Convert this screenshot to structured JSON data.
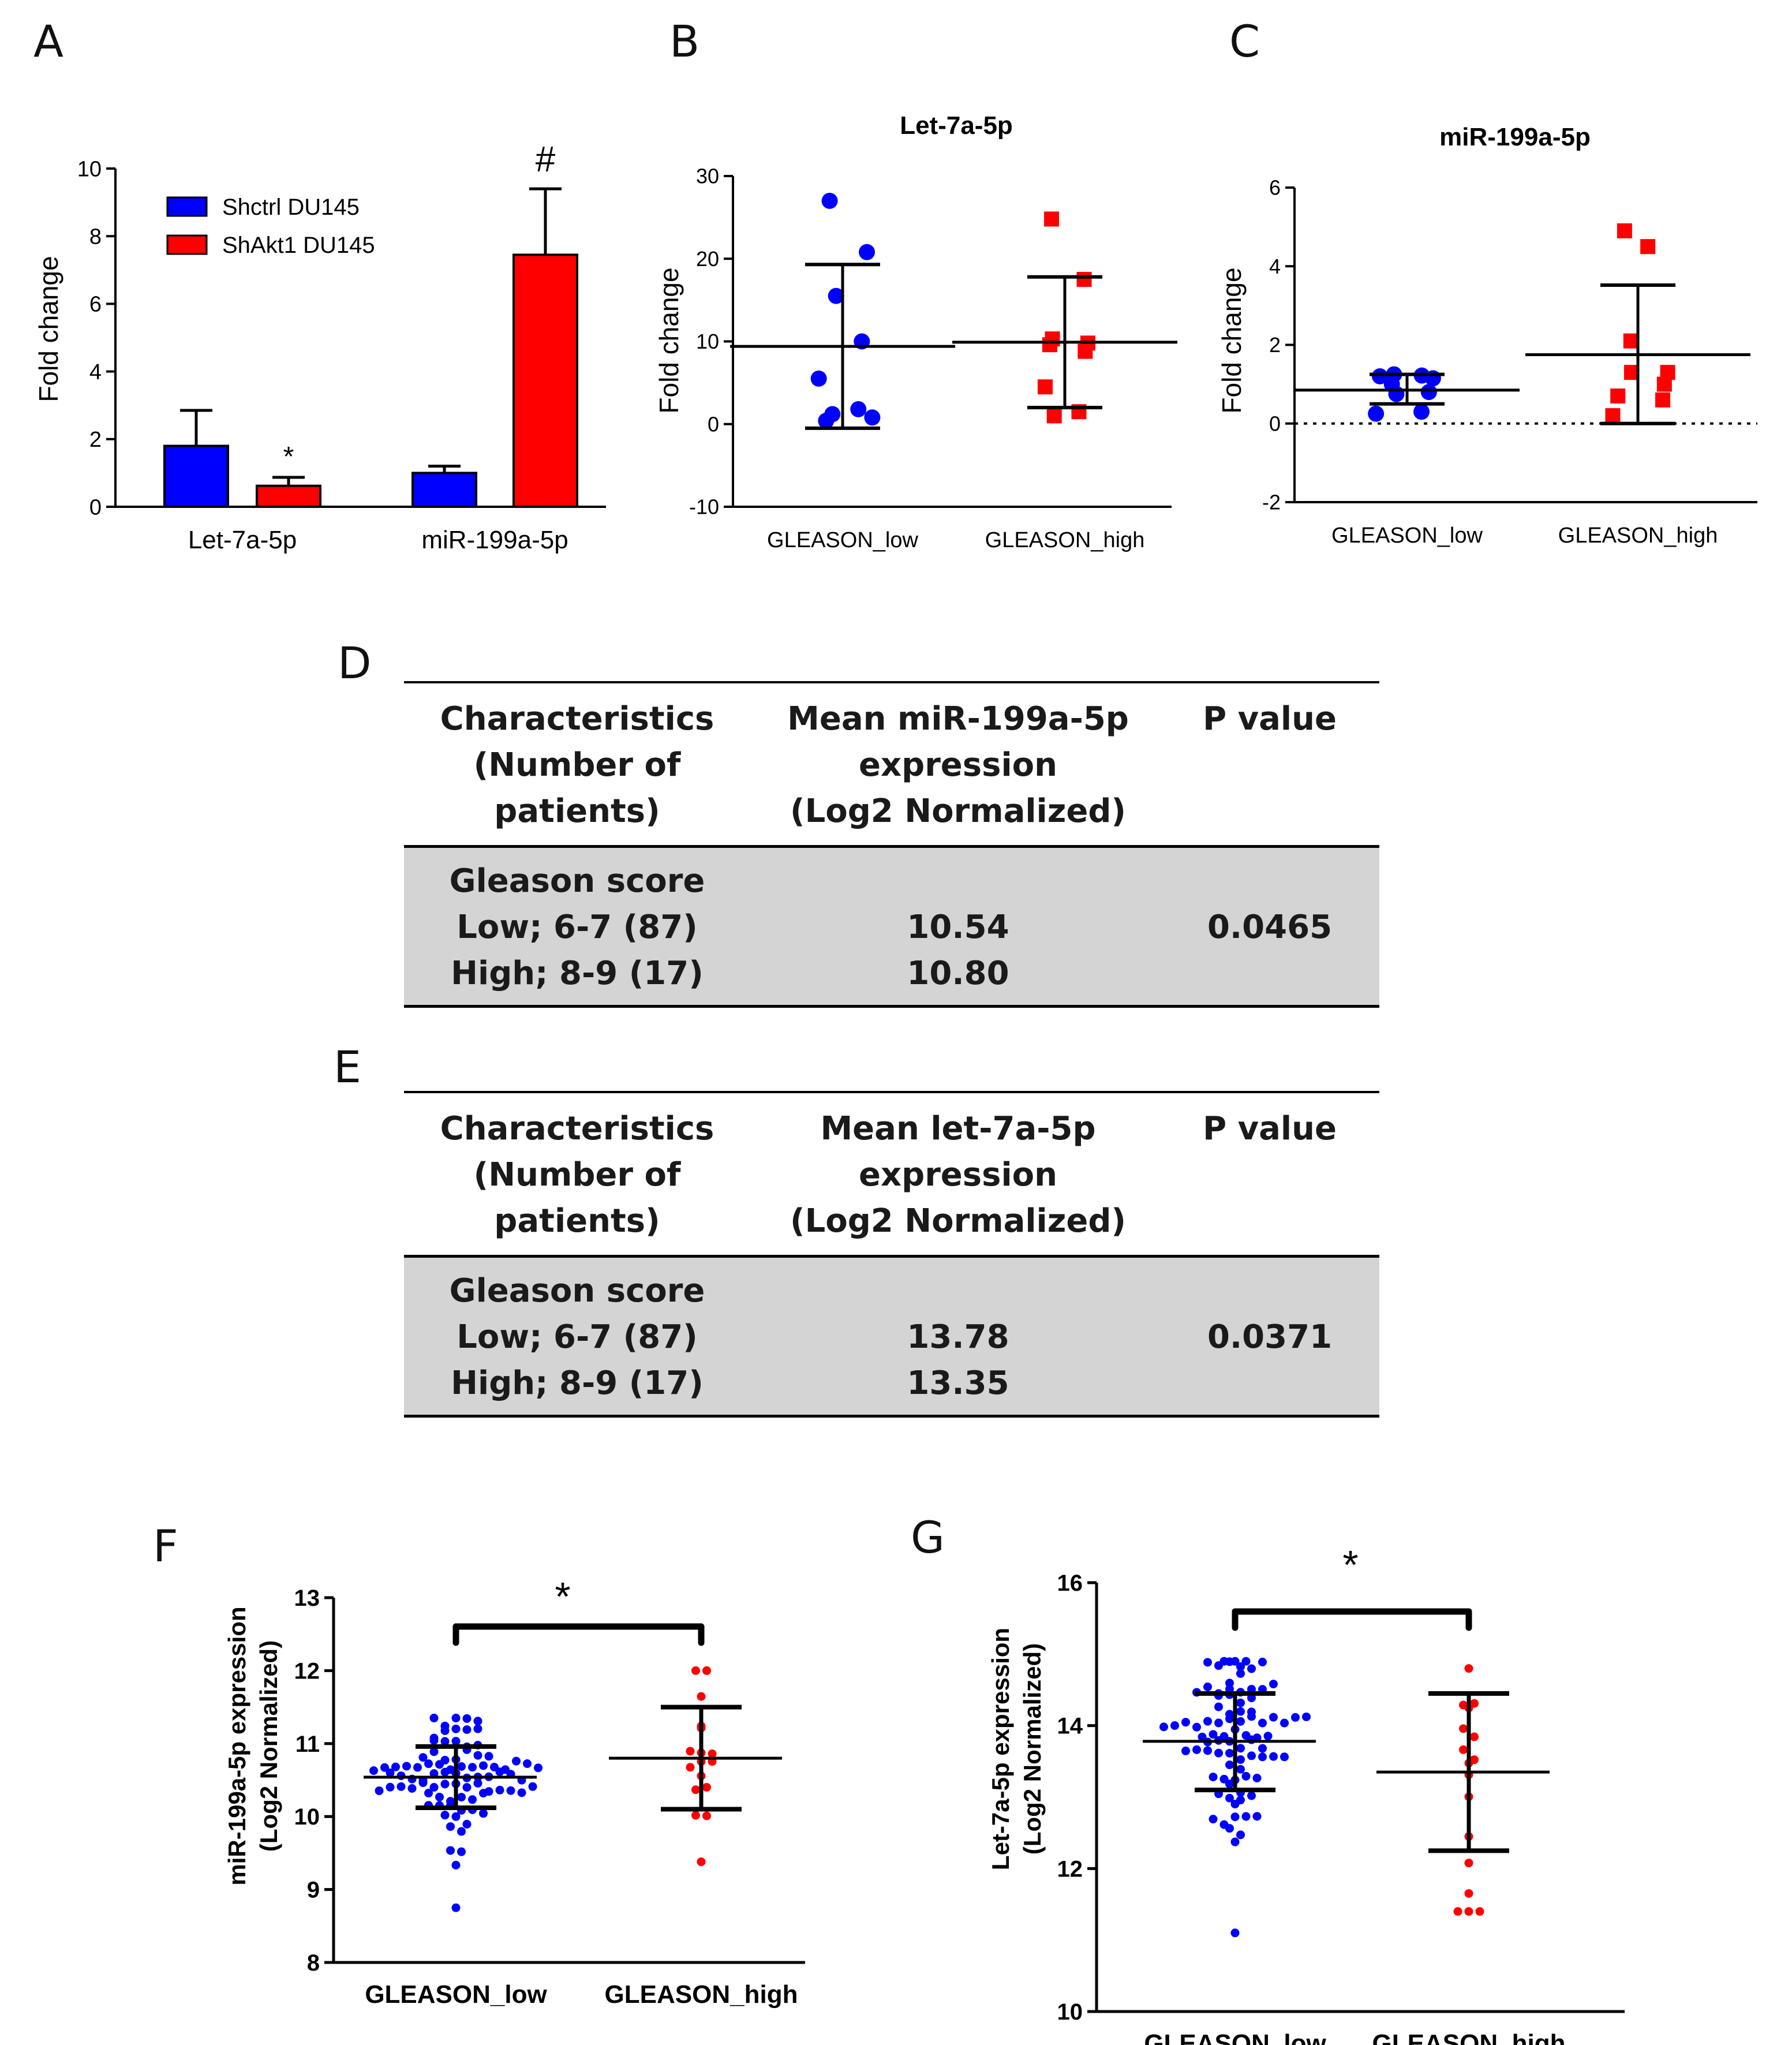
{
  "panel_labels": {
    "a": "A",
    "b": "B",
    "c": "C",
    "d": "D",
    "e": "E",
    "f": "F",
    "g": "G"
  },
  "colors": {
    "blue": "#0000ff",
    "red": "#ff0000",
    "gray": "#d4d4d4"
  },
  "chart_data": [
    {
      "id": "A",
      "type": "bar",
      "title": "",
      "ylabel": "Fold change",
      "ylim": [
        0,
        10
      ],
      "yticks": [
        0,
        2,
        4,
        6,
        8,
        10
      ],
      "categories": [
        "Let-7a-5p",
        "miR-199a-5p"
      ],
      "series": [
        {
          "name": "Shctrl DU145",
          "color": "#0000ff",
          "values": [
            1.8,
            1.0
          ],
          "errors": [
            1.05,
            0.2
          ]
        },
        {
          "name": "ShAkt1 DU145",
          "color": "#ff0000",
          "values": [
            0.62,
            7.45
          ],
          "errors": [
            0.25,
            1.95
          ]
        }
      ],
      "annotations": [
        "*",
        "#"
      ],
      "legend": "top-left"
    },
    {
      "id": "B",
      "type": "scatter",
      "title": "Let-7a-5p",
      "ylabel": "Fold change",
      "ylim": [
        -10,
        30
      ],
      "yticks": [
        -10,
        0,
        10,
        20,
        30
      ],
      "categories": [
        "GLEASON_low",
        "GLEASON_high"
      ],
      "groups": [
        {
          "name": "GLEASON_low",
          "color": "#0000ff",
          "marker": "circle",
          "values": [
            27,
            20.8,
            15.5,
            10,
            5.5,
            1.8,
            1.2,
            0.8,
            0.4
          ],
          "mean": 9.4,
          "sd_low": -0.5,
          "sd_high": 19.3
        },
        {
          "name": "GLEASON_high",
          "color": "#ff0000",
          "marker": "square",
          "values": [
            24.8,
            17.5,
            10.3,
            9.8,
            9.6,
            8.8,
            4.5,
            1.5,
            1.0
          ],
          "mean": 9.9,
          "sd_low": 2.0,
          "sd_high": 17.8
        }
      ]
    },
    {
      "id": "C",
      "type": "scatter",
      "title": "miR-199a-5p",
      "ylabel": "Fold change",
      "ylim": [
        -2,
        6
      ],
      "yticks": [
        -2,
        0,
        2,
        4,
        6
      ],
      "categories": [
        "GLEASON_low",
        "GLEASON_high"
      ],
      "groups": [
        {
          "name": "GLEASON_low",
          "color": "#0000ff",
          "marker": "circle",
          "values": [
            1.25,
            1.22,
            1.2,
            1.15,
            1.0,
            0.8,
            0.75,
            0.3,
            0.25
          ],
          "mean": 0.85,
          "sd_low": 0.5,
          "sd_high": 1.25
        },
        {
          "name": "GLEASON_high",
          "color": "#ff0000",
          "marker": "square",
          "values": [
            4.9,
            4.5,
            2.1,
            1.3,
            1.3,
            1.0,
            0.7,
            0.6,
            0.2
          ],
          "mean": 1.75,
          "sd_low": 0.0,
          "sd_high": 3.52
        }
      ]
    },
    {
      "id": "F",
      "type": "scatter",
      "title": "",
      "ylabel": "miR-199a-5p expression",
      "ylabel2": "(Log2 Normalized)",
      "ylim": [
        8,
        13
      ],
      "yticks": [
        8,
        9,
        10,
        11,
        12,
        13
      ],
      "categories": [
        "GLEASON_low",
        "GLEASON_high"
      ],
      "groups": [
        {
          "name": "GLEASON_low",
          "color": "#0000ff",
          "n": 87,
          "mean": 10.54,
          "sd_low": 10.12,
          "sd_high": 10.96,
          "min": 8.75,
          "max": 11.35
        },
        {
          "name": "GLEASON_high",
          "color": "#ff0000",
          "n": 17,
          "mean": 10.8,
          "sd_low": 10.1,
          "sd_high": 11.5,
          "min": 9.38,
          "max": 12.0
        }
      ],
      "significance": "*"
    },
    {
      "id": "G",
      "type": "scatter",
      "title": "",
      "ylabel": "Let-7a-5p expression",
      "ylabel2": "(Log2 Normalized)",
      "ylim": [
        10,
        16
      ],
      "yticks": [
        10,
        12,
        14,
        16
      ],
      "categories": [
        "GLEASON_low",
        "GLEASON_high"
      ],
      "groups": [
        {
          "name": "GLEASON_low",
          "color": "#0000ff",
          "n": 87,
          "mean": 13.78,
          "sd_low": 13.1,
          "sd_high": 14.45,
          "min": 11.1,
          "max": 14.9
        },
        {
          "name": "GLEASON_high",
          "color": "#ff0000",
          "n": 17,
          "mean": 13.35,
          "sd_low": 12.25,
          "sd_high": 14.45,
          "min": 11.4,
          "max": 14.8
        }
      ],
      "significance": "*"
    }
  ],
  "table_d": {
    "col1": [
      "Characteristics",
      "(Number of",
      "patients)"
    ],
    "col2": [
      "Mean miR-199a-5p",
      "expression",
      "(Log2 Normalized)"
    ],
    "col3": "P value",
    "row_title": "Gleason score",
    "row_low": "Low; 6-7 (87)",
    "row_high": "High; 8-9 (17)",
    "val_low": "10.54",
    "val_high": "10.80",
    "p": "0.0465"
  },
  "table_e": {
    "col1": [
      "Characteristics",
      "(Number of",
      "patients)"
    ],
    "col2": [
      "Mean let-7a-5p",
      "expression",
      "(Log2 Normalized)"
    ],
    "col3": "P value",
    "row_title": "Gleason score",
    "row_low": "Low; 6-7 (87)",
    "row_high": "High; 8-9 (17)",
    "val_low": "13.78",
    "val_high": "13.35",
    "p": "0.0371"
  }
}
